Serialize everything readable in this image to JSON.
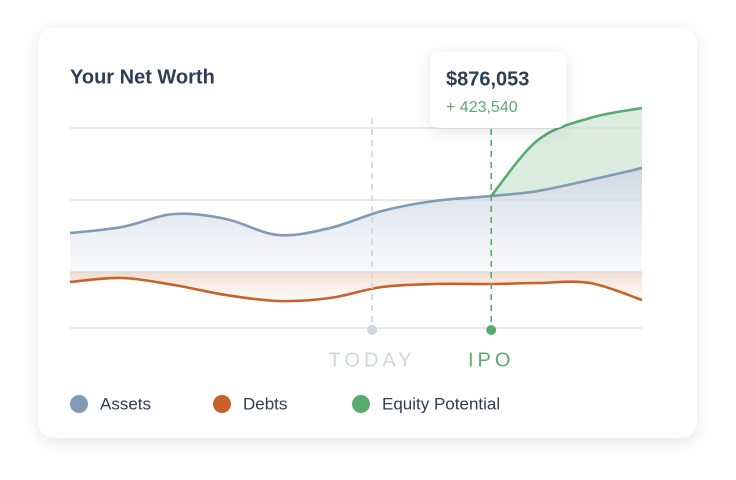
{
  "chart_data": {
    "type": "area-line",
    "title": "Your Net Worth",
    "x": [
      0,
      1,
      2,
      3,
      4,
      5,
      6,
      7,
      8.1,
      9,
      10,
      11
    ],
    "xlim": [
      0,
      11
    ],
    "ylim": [
      -60,
      164
    ],
    "grid_lines": [
      144,
      72,
      0,
      -56
    ],
    "series": [
      {
        "name": "Assets",
        "color": "#7f9bb5",
        "values": [
          39,
          45,
          58,
          53,
          37,
          44,
          61,
          71,
          76,
          81,
          92,
          104
        ]
      },
      {
        "name": "Debts",
        "color": "#c8622a",
        "values": [
          -10,
          -6,
          -13,
          -23,
          -29,
          -26,
          -15,
          -12,
          -12,
          -11,
          -11,
          -28
        ]
      },
      {
        "name": "Equity Potential",
        "color": "#5aac6e",
        "values": [
          null,
          null,
          null,
          null,
          null,
          null,
          null,
          null,
          76,
          132,
          154,
          164
        ]
      }
    ],
    "markers": [
      {
        "label": "TODAY",
        "x": 5.81,
        "color": "#cfd5dc"
      },
      {
        "label": "IPO",
        "x": 8.1,
        "color": "#5aac6e"
      }
    ],
    "tooltip": {
      "value": "$876,053",
      "change": "+ 423,540"
    }
  }
}
